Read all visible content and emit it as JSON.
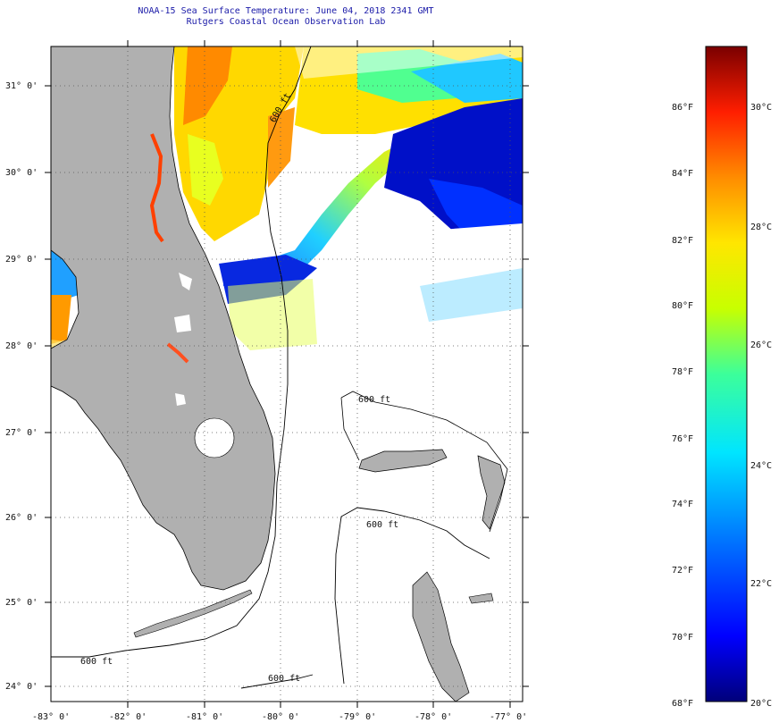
{
  "title": {
    "line1": "NOAA-15 Sea Surface Temperature:  June 04, 2018 2341 GMT",
    "line2": "Rutgers Coastal Ocean Observation Lab"
  },
  "map": {
    "lat_labels": [
      "31° 0'",
      "30° 0'",
      "29° 0'",
      "28° 0'",
      "27° 0'",
      "26° 0'",
      "25° 0'",
      "24° 0'"
    ],
    "lon_labels": [
      "-83° 0'",
      "-82° 0'",
      "-81° 0'",
      "-80° 0'",
      "-79° 0'",
      "-78° 0'",
      "-77° 0'"
    ],
    "contour_labels": [
      "600 ft",
      "600 ft",
      "600 ft",
      "600 ft",
      "600 ft"
    ],
    "colors": {
      "land": "#b0b0b0",
      "cloud": "#ffffff",
      "frame": "#000000"
    }
  },
  "colorbar": {
    "fahrenheit_labels": [
      "86°F",
      "84°F",
      "82°F",
      "80°F",
      "78°F",
      "76°F",
      "74°F",
      "72°F",
      "70°F",
      "68°F"
    ],
    "celsius_labels": [
      "30°C",
      "28°C",
      "26°C",
      "24°C",
      "22°C",
      "20°C"
    ],
    "min_c": 20,
    "max_c": 31,
    "colors": [
      "#00007a",
      "#0000ff",
      "#0078ff",
      "#00e5ff",
      "#3cff9a",
      "#c8ff00",
      "#ffe600",
      "#ff8c00",
      "#ff1e00",
      "#7a0000"
    ]
  }
}
